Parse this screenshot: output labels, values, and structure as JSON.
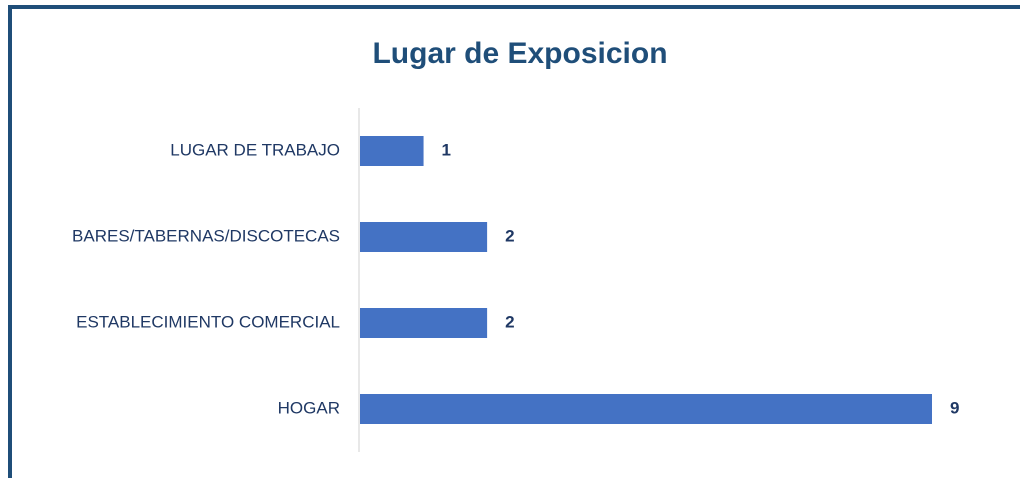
{
  "chart_data": {
    "type": "barh",
    "title": "Lugar de Exposicion",
    "categories": [
      "LUGAR DE TRABAJO",
      "BARES/TABERNAS/DISCOTECAS",
      "ESTABLECIMIENTO COMERCIAL",
      "HOGAR"
    ],
    "values": [
      1,
      2,
      2,
      9
    ],
    "color": "#4472c4"
  }
}
